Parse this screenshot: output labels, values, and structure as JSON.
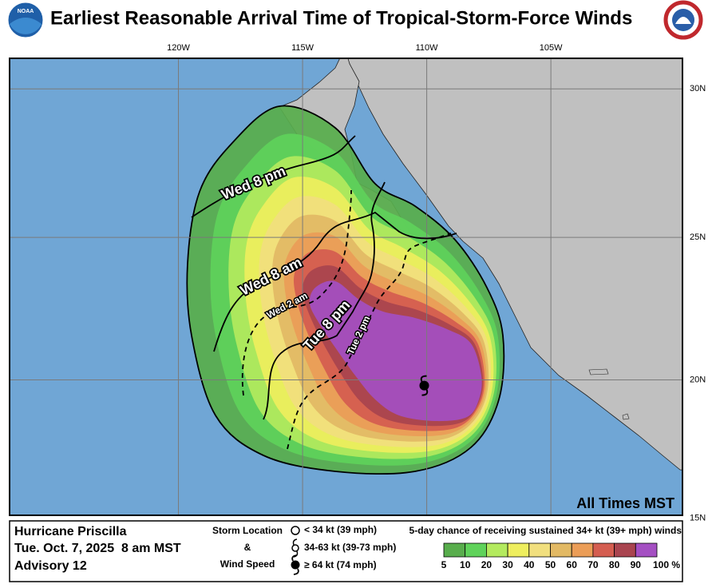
{
  "title": "Earliest Reasonable Arrival Time of Tropical-Storm-Force Winds",
  "logo": "NOAA",
  "map": {
    "xlim": [
      -126.8,
      -99.7
    ],
    "ylim": [
      15.1,
      31.0
    ],
    "lon_ticks": [
      {
        "value": -120,
        "label": "120W"
      },
      {
        "value": -115,
        "label": "115W"
      },
      {
        "value": -110,
        "label": "110W"
      },
      {
        "value": -105,
        "label": "105W"
      }
    ],
    "lat_ticks": [
      {
        "value": 30,
        "label": "30N"
      },
      {
        "value": 25,
        "label": "25N"
      },
      {
        "value": 20,
        "label": "20N"
      },
      {
        "value": 15,
        "label": "15N"
      }
    ],
    "storm": {
      "lon": -110.1,
      "lat": 19.8
    },
    "contour_labels": [
      "Wed 8 pm",
      "Wed 8 am",
      "Wed 2 am",
      "Tue 8 pm",
      "Tue 2 pm"
    ],
    "note": "All Times MST"
  },
  "info": {
    "storm": "Hurricane Priscilla",
    "time": "Tue. Oct. 7, 2025  8 am MST",
    "advisory": "Advisory 12"
  },
  "key": {
    "title1": "Storm Location",
    "amp": "&",
    "title2": "Wind Speed",
    "items": [
      "< 34 kt (39 mph)",
      "34-63 kt (39-73 mph)",
      "≥ 64 kt (74 mph)"
    ]
  },
  "legend": {
    "title": "5-day chance of receiving sustained 34+ kt (39+ mph) winds",
    "ticks": [
      5,
      10,
      20,
      30,
      40,
      50,
      60,
      70,
      80,
      90,
      {
        "value": 100,
        "label": "100 %"
      }
    ],
    "colors": [
      "#58ad4c",
      "#5fd25a",
      "#b3ea5e",
      "#eeee5e",
      "#f1df7e",
      "#e2b964",
      "#eb9d57",
      "#d45d50",
      "#a9444f",
      "#a44fc2"
    ]
  }
}
